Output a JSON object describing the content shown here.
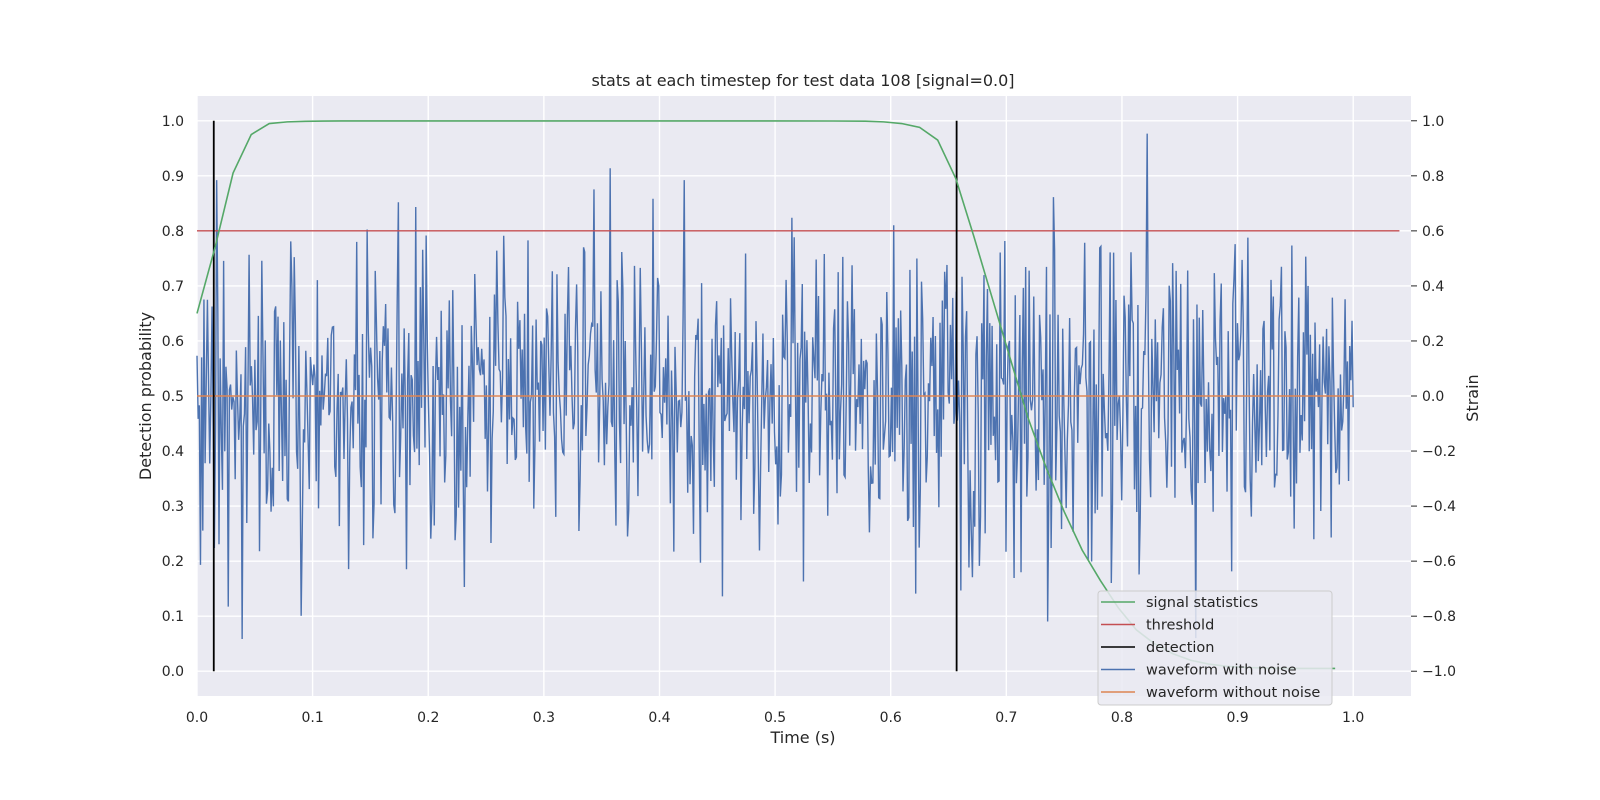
{
  "chart_data": {
    "type": "line",
    "title": "stats at each timestep for test data 108 [signal=0.0]",
    "xlabel": "Time (s)",
    "ylabel": "Detection probability",
    "y2label": "Strain",
    "xlim": [
      0.0,
      1.05
    ],
    "ylim": [
      -0.045,
      1.045
    ],
    "y2lim": [
      -1.09,
      1.09
    ],
    "xticks": [
      "0.0",
      "0.1",
      "0.2",
      "0.3",
      "0.4",
      "0.5",
      "0.6",
      "0.7",
      "0.8",
      "0.9",
      "1.0"
    ],
    "yticks": [
      "0.0",
      "0.1",
      "0.2",
      "0.3",
      "0.4",
      "0.5",
      "0.6",
      "0.7",
      "0.8",
      "0.9",
      "1.0"
    ],
    "y2ticks": [
      "−1.0",
      "−0.8",
      "−0.6",
      "−0.4",
      "−0.2",
      "0.0",
      "0.2",
      "0.4",
      "0.6",
      "0.8",
      "1.0"
    ],
    "grid": true,
    "legend_position": "lower-right",
    "threshold": 0.8,
    "detections": [
      0.0145,
      0.657
    ],
    "waveform_noise_seed": 108,
    "series": [
      {
        "name": "signal statistics",
        "color": "#55a868",
        "axis": "left",
        "x": [
          0.0,
          0.0156,
          0.0312,
          0.0469,
          0.0625,
          0.0781,
          0.0938,
          0.1094,
          0.125,
          0.2,
          0.3,
          0.4,
          0.5,
          0.55,
          0.5781,
          0.5938,
          0.6094,
          0.625,
          0.6406,
          0.6563,
          0.6719,
          0.6875,
          0.7031,
          0.7188,
          0.7344,
          0.75,
          0.7656,
          0.7813,
          0.7969,
          0.8125,
          0.8281,
          0.8438,
          0.8594,
          0.875,
          0.8906,
          0.9063,
          0.9219,
          0.9375,
          0.9531,
          0.9688,
          0.9844
        ],
        "values": [
          0.65,
          0.77,
          0.905,
          0.975,
          0.995,
          0.998,
          0.999,
          0.9995,
          0.9997,
          0.9997,
          0.9997,
          0.9997,
          0.9997,
          0.9996,
          0.9992,
          0.998,
          0.995,
          0.988,
          0.965,
          0.895,
          0.79,
          0.68,
          0.57,
          0.46,
          0.37,
          0.29,
          0.22,
          0.165,
          0.115,
          0.075,
          0.05,
          0.032,
          0.02,
          0.013,
          0.009,
          0.007,
          0.006,
          0.005,
          0.005,
          0.005,
          0.005
        ]
      },
      {
        "name": "threshold",
        "color": "#c44e52",
        "axis": "left"
      },
      {
        "name": "detection",
        "color": "#000000",
        "axis": "left"
      },
      {
        "name": "waveform with noise",
        "color": "#4c72b0",
        "axis": "right",
        "x_range": [
          0.0,
          1.0
        ],
        "points": 1000,
        "amplitude_std": 0.28
      },
      {
        "name": "waveform without noise",
        "color": "#dd8452",
        "axis": "right",
        "values_constant": 0.0,
        "x_range": [
          0.0,
          1.0
        ]
      }
    ]
  }
}
